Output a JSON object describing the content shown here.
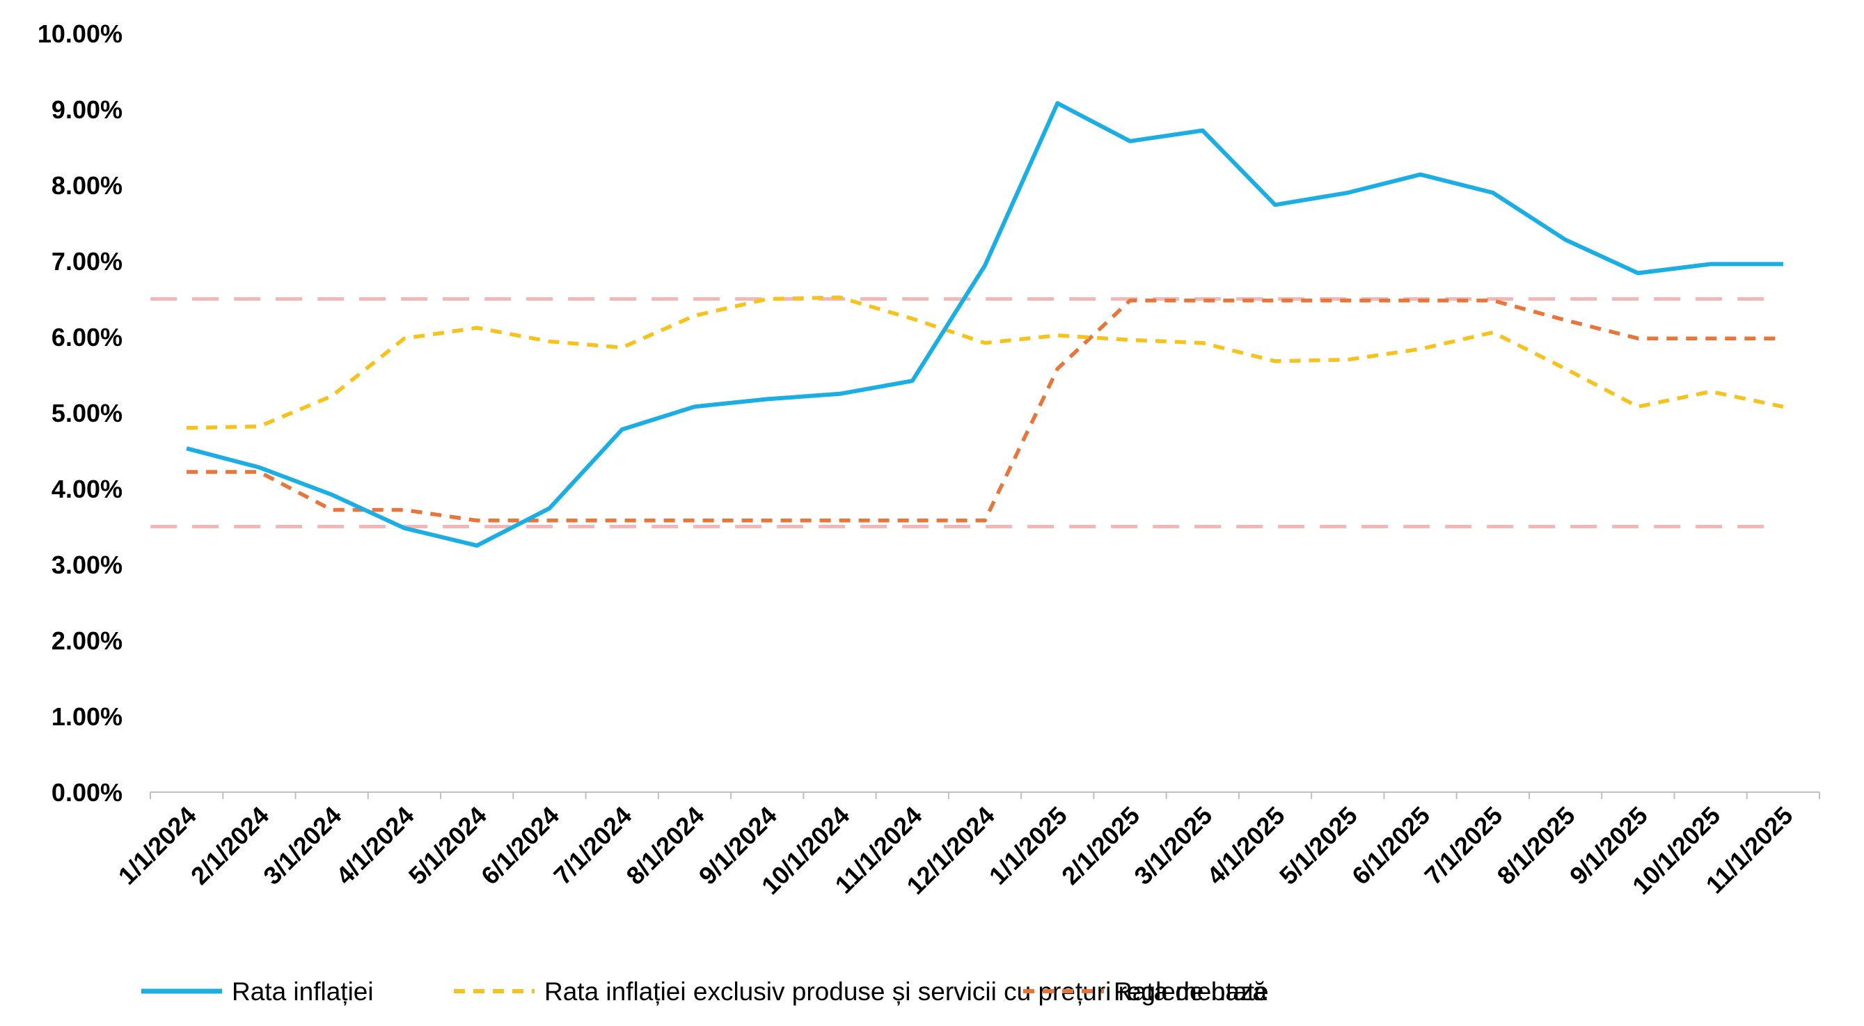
{
  "chart_data": {
    "type": "line",
    "title": "",
    "xlabel": "",
    "ylabel": "",
    "ylim": [
      0,
      10
    ],
    "y_ticks": [
      "0.00%",
      "1.00%",
      "2.00%",
      "3.00%",
      "4.00%",
      "5.00%",
      "6.00%",
      "7.00%",
      "8.00%",
      "9.00%",
      "10.00%"
    ],
    "categories": [
      "1/1/2024",
      "2/1/2024",
      "3/1/2024",
      "4/1/2024",
      "5/1/2024",
      "6/1/2024",
      "7/1/2024",
      "8/1/2024",
      "9/1/2024",
      "10/1/2024",
      "11/1/2024",
      "12/1/2024",
      "1/1/2025",
      "2/1/2025",
      "3/1/2025",
      "4/1/2025",
      "5/1/2025",
      "6/1/2025",
      "7/1/2025",
      "8/1/2025",
      "9/1/2025",
      "10/1/2025",
      "11/1/2025"
    ],
    "series": [
      {
        "name": "Rata inflației",
        "color": "#1aaee5",
        "dash": "solid",
        "values": [
          4.53,
          4.28,
          3.92,
          3.48,
          3.25,
          3.74,
          4.78,
          5.08,
          5.18,
          5.25,
          5.42,
          6.94,
          9.08,
          8.58,
          8.72,
          7.74,
          7.9,
          8.14,
          7.9,
          7.28,
          6.84,
          6.96,
          6.96
        ]
      },
      {
        "name": "Rata inflației exclusiv produse și servicii cu prețuri reglementate",
        "color": "#f7c21c",
        "dash": "dashed",
        "values": [
          4.8,
          4.82,
          5.22,
          5.98,
          6.12,
          5.94,
          5.86,
          6.28,
          6.5,
          6.52,
          6.24,
          5.92,
          6.02,
          5.96,
          5.92,
          5.68,
          5.7,
          5.84,
          6.06,
          5.58,
          5.08,
          5.28,
          5.08
        ]
      },
      {
        "name": "Rata de bază",
        "color": "#e8763a",
        "dash": "dashed",
        "values": [
          4.22,
          4.22,
          3.72,
          3.72,
          3.58,
          3.58,
          3.58,
          3.58,
          3.58,
          3.58,
          3.58,
          3.58,
          5.58,
          6.48,
          6.48,
          6.48,
          6.48,
          6.48,
          6.48,
          6.22,
          5.98,
          5.98,
          5.98
        ]
      }
    ],
    "reference_lines": [
      {
        "value": 6.5,
        "color": "#f2b8b8",
        "dash": "long-dashed"
      },
      {
        "value": 3.5,
        "color": "#f2b8b8",
        "dash": "long-dashed"
      }
    ],
    "legend_position": "bottom",
    "grid": false
  }
}
